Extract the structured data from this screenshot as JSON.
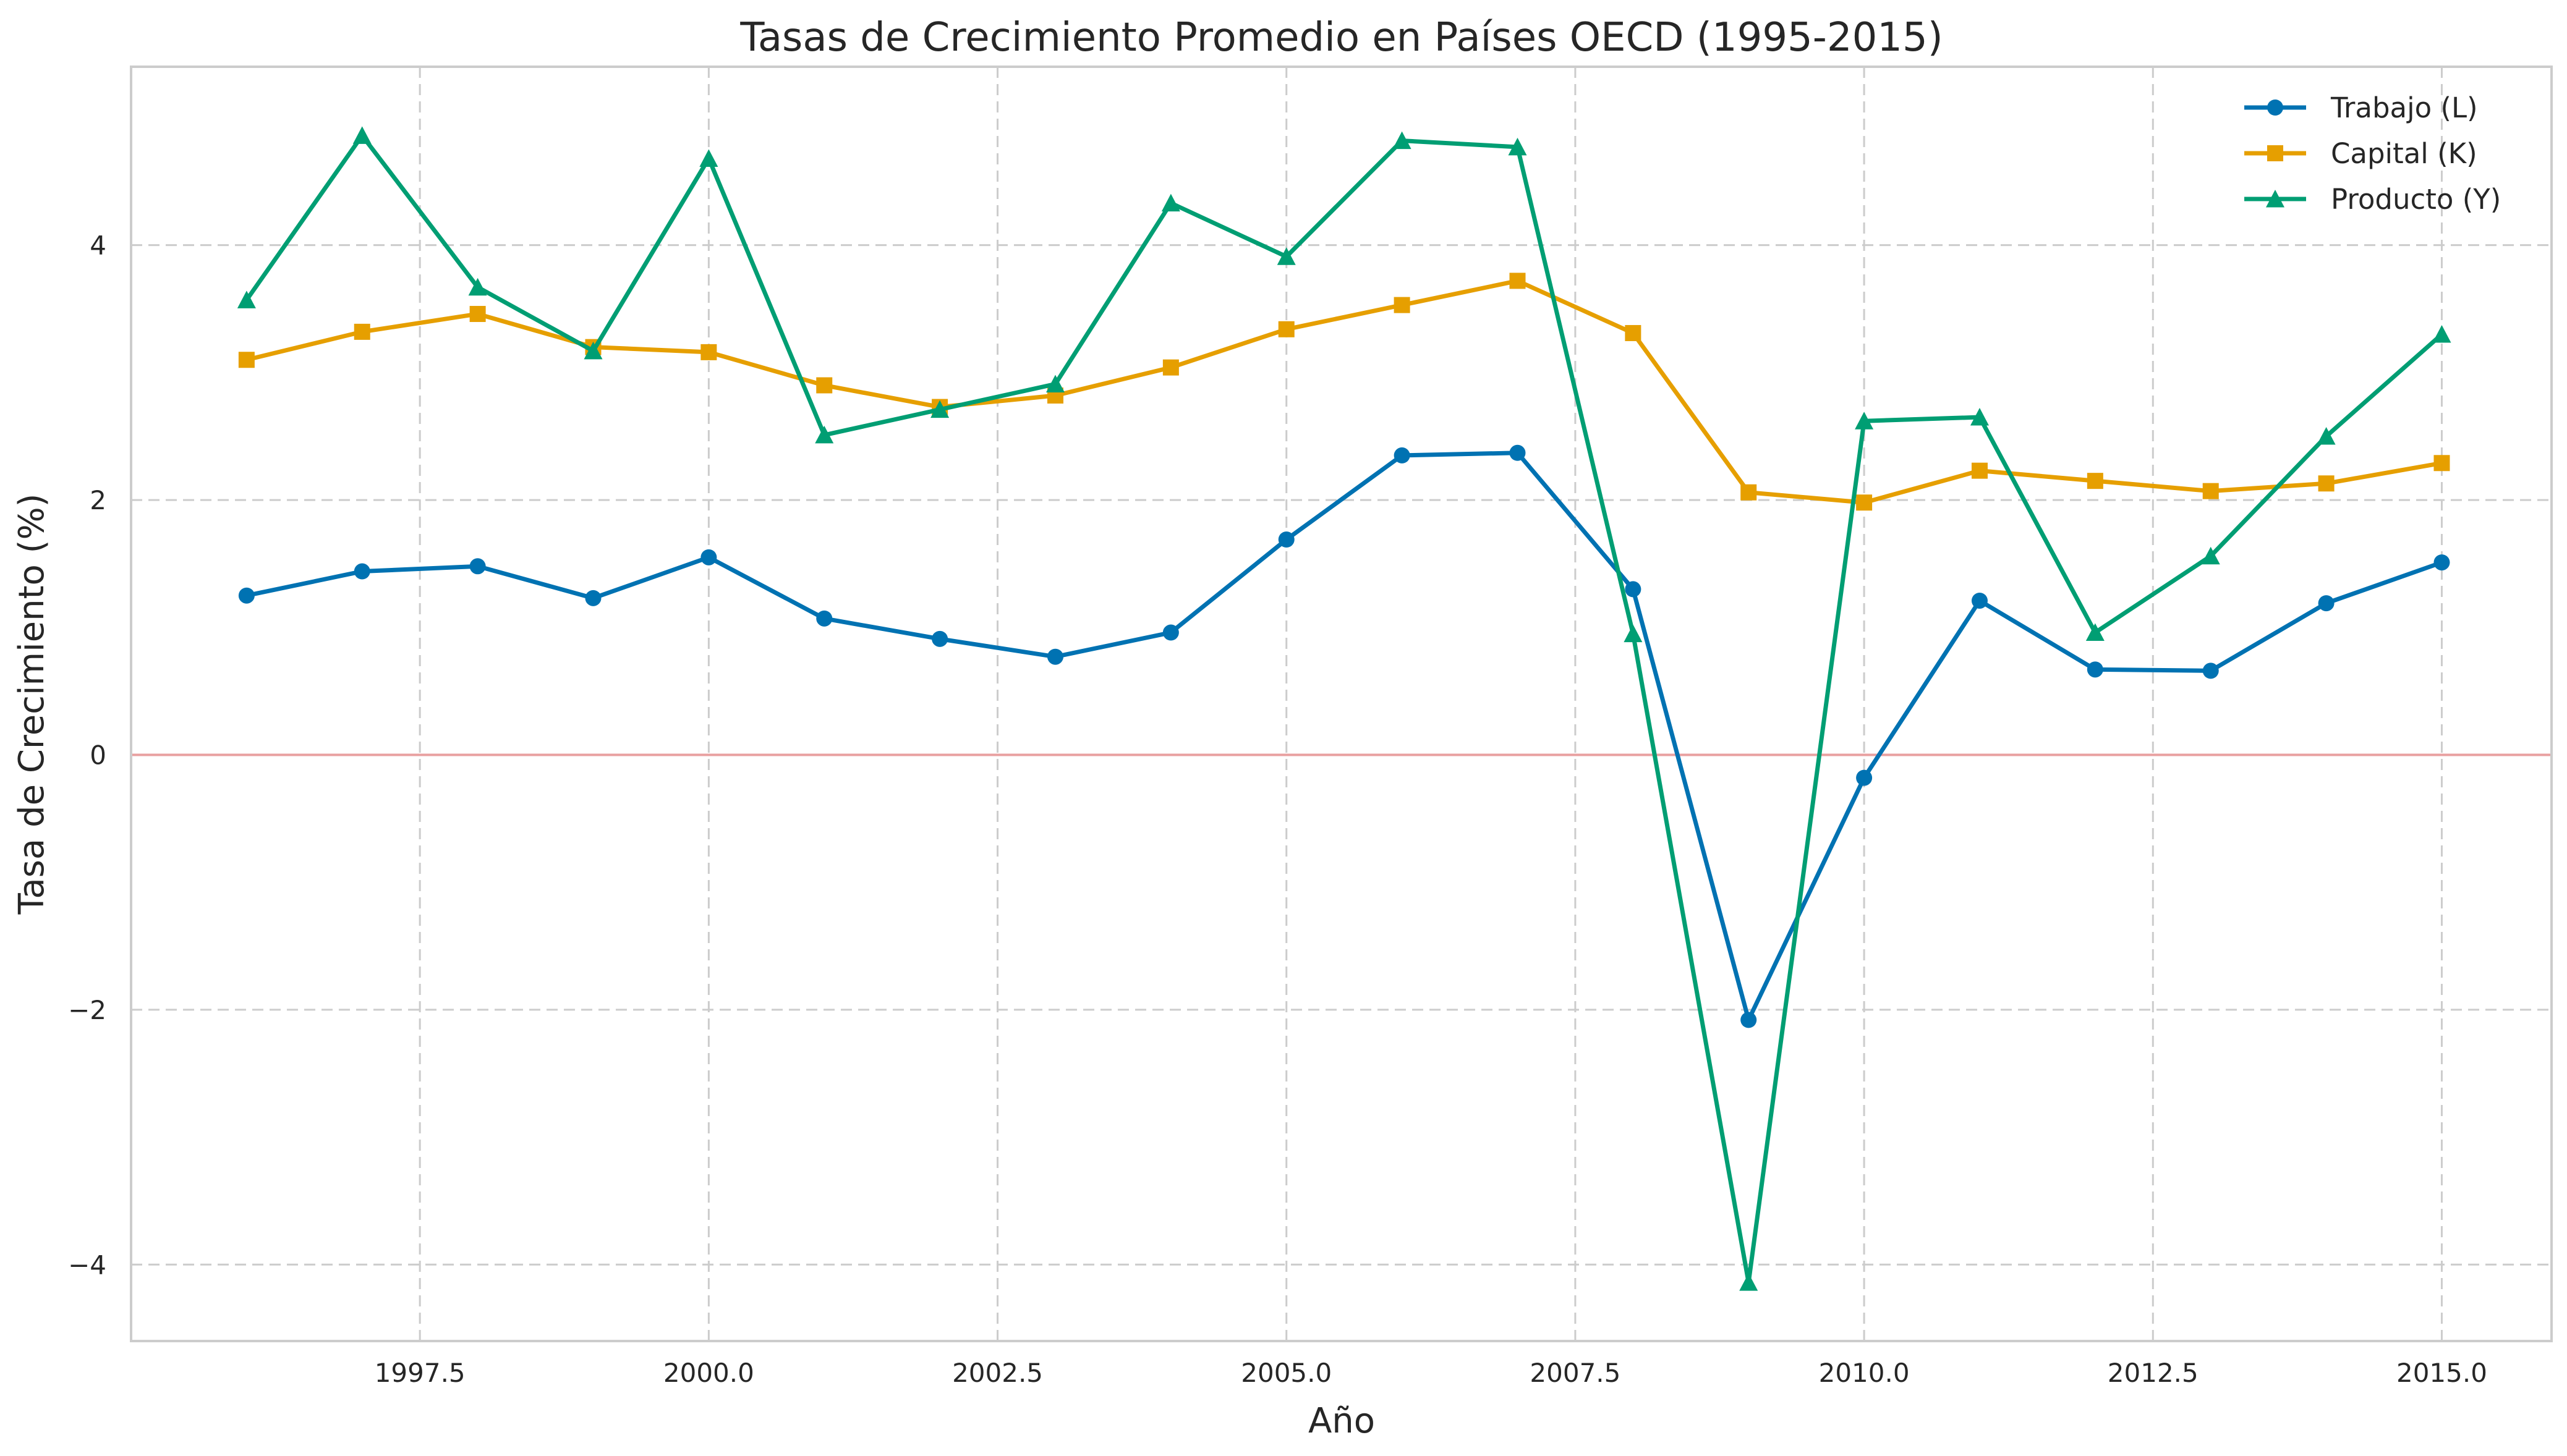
{
  "chart_data": {
    "type": "line",
    "title": "Tasas de Crecimiento Promedio en Países OECD (1995-2015)",
    "xlabel": "Año",
    "ylabel": "Tasa de Crecimiento (%)",
    "xlim": [
      1995.0,
      2015.95
    ],
    "ylim": [
      -4.6,
      5.4
    ],
    "x_ticks": [
      1997.5,
      2000.0,
      2002.5,
      2005.0,
      2007.5,
      2010.0,
      2012.5,
      2015.0
    ],
    "x_tick_labels": [
      "1997.5",
      "2000.0",
      "2002.5",
      "2005.0",
      "2007.5",
      "2010.0",
      "2012.5",
      "2015.0"
    ],
    "y_ticks": [
      -4,
      -2,
      0,
      2,
      4
    ],
    "y_tick_labels": [
      "−4",
      "−2",
      "0",
      "2",
      "4"
    ],
    "grid": true,
    "reference_line": {
      "y": 0,
      "color": "#e8a0a0"
    },
    "legend_position": "top-right",
    "x": [
      1996,
      1997,
      1998,
      1999,
      2000,
      2001,
      2002,
      2003,
      2004,
      2005,
      2006,
      2007,
      2008,
      2009,
      2010,
      2011,
      2012,
      2013,
      2014,
      2015
    ],
    "series": [
      {
        "name": "Trabajo (L)",
        "color": "#0072b2",
        "marker": "circle",
        "values": [
          1.25,
          1.44,
          1.48,
          1.23,
          1.55,
          1.07,
          0.91,
          0.77,
          0.96,
          1.69,
          2.35,
          2.37,
          1.3,
          -2.08,
          -0.18,
          1.21,
          0.67,
          0.66,
          1.19,
          1.51
        ]
      },
      {
        "name": "Capital (K)",
        "color": "#e69f00",
        "marker": "square",
        "values": [
          3.1,
          3.32,
          3.46,
          3.2,
          3.16,
          2.9,
          2.73,
          2.82,
          3.04,
          3.34,
          3.53,
          3.72,
          3.31,
          2.06,
          1.98,
          2.23,
          2.15,
          2.07,
          2.13,
          2.29
        ]
      },
      {
        "name": "Producto (Y)",
        "color": "#009e73",
        "marker": "triangle",
        "values": [
          3.57,
          4.86,
          3.67,
          3.17,
          4.68,
          2.51,
          2.71,
          2.91,
          4.33,
          3.91,
          4.82,
          4.77,
          0.95,
          -4.14,
          2.62,
          2.65,
          0.96,
          1.56,
          2.5,
          3.3
        ]
      }
    ]
  }
}
